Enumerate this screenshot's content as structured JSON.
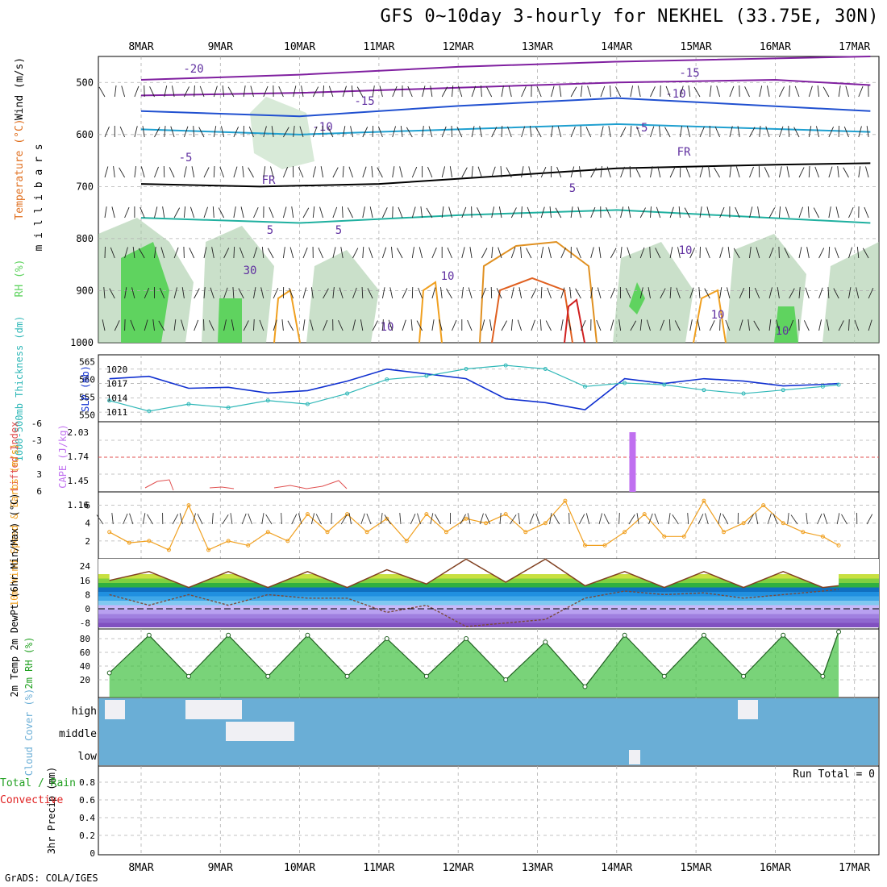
{
  "title": "GFS 0~10day 3-hourly for NEKHEL (33.75E, 30N)",
  "credit": "GrADS: COLA/IGES",
  "colors": {
    "rh_green": "#5fd35f",
    "rh_mid": "#9fc79f",
    "rh_light": "#d8ead8",
    "slp_line": "#1030d0",
    "thickness_line": "#30b8b8",
    "lifted_index": "#e05050",
    "cape_bar": "#c070f0",
    "wind_speed": "#f0a020",
    "cloud_blue": "#6aaed6",
    "grid": "#b0b0b0"
  },
  "chart_data": [
    {
      "panel": "upper-air",
      "type": "contour",
      "ylabel_wind": "Wind (m/s)",
      "ylabel_temp": "Temperature (°C)",
      "ylabel_rh": "RH (%)",
      "ylabel_units": "m i l l i b a r s",
      "y_ticks": [
        "500",
        "600",
        "700",
        "800",
        "900",
        "1000"
      ],
      "x_ticks": [
        "8MAR",
        "9MAR",
        "10MAR",
        "11MAR",
        "12MAR",
        "13MAR",
        "14MAR",
        "15MAR",
        "16MAR",
        "17MAR"
      ],
      "contour_labels": [
        "-20",
        "-15",
        "-15",
        "-10",
        "-10",
        "-5",
        "-5",
        "5",
        "5",
        "5",
        "10",
        "10",
        "10",
        "FR",
        "FR",
        "30",
        "10",
        "10"
      ],
      "freezing_level": [
        [
          0,
          695
        ],
        [
          1.5,
          700
        ],
        [
          3,
          695
        ],
        [
          4.5,
          680
        ],
        [
          6,
          665
        ],
        [
          8,
          658
        ],
        [
          9.2,
          655
        ]
      ],
      "isotherms": [
        {
          "name": "-20",
          "points": [
            [
              0,
              495
            ],
            [
              2,
              485
            ],
            [
              4,
              470
            ],
            [
              6,
              460
            ],
            [
              9.2,
              450
            ]
          ]
        },
        {
          "name": "-15",
          "points": [
            [
              0,
              525
            ],
            [
              2,
              520
            ],
            [
              4,
              510
            ],
            [
              6,
              500
            ],
            [
              8,
              495
            ],
            [
              9.2,
              505
            ]
          ]
        },
        {
          "name": "-10",
          "points": [
            [
              0,
              555
            ],
            [
              2,
              565
            ],
            [
              4,
              545
            ],
            [
              6,
              530
            ],
            [
              9.2,
              555
            ]
          ]
        },
        {
          "name": "-5",
          "points": [
            [
              0,
              590
            ],
            [
              2,
              600
            ],
            [
              4,
              590
            ],
            [
              6,
              580
            ],
            [
              9.2,
              595
            ]
          ]
        },
        {
          "name": "5",
          "points": [
            [
              0,
              760
            ],
            [
              2,
              770
            ],
            [
              4,
              755
            ],
            [
              6,
              745
            ],
            [
              9.2,
              770
            ]
          ]
        }
      ]
    },
    {
      "panel": "thickness-slp",
      "type": "line",
      "ylabel_left": "1000-500mb Thickness (dm)",
      "ylabel_right": "SLP (mb)",
      "left_ticks": [
        "565",
        "560",
        "555",
        "550"
      ],
      "right_ticks": [
        "1020",
        "1017",
        "1014",
        "1011"
      ],
      "series": [
        {
          "name": "SLP",
          "x": [
            0,
            0.5,
            1,
            1.5,
            2,
            2.5,
            3,
            3.5,
            4,
            4.5,
            5,
            5.5,
            6,
            6.5,
            7,
            7.5,
            8,
            8.5,
            9,
            9.2
          ],
          "values": [
            1018,
            1018.5,
            1016,
            1016.2,
            1015,
            1015.5,
            1017.5,
            1020,
            1019,
            1018,
            1013.8,
            1013,
            1011.5,
            1018,
            1017,
            1018,
            1017.5,
            1016.5,
            1016.8,
            1017
          ]
        },
        {
          "name": "Thickness",
          "x": [
            0,
            0.5,
            1,
            1.5,
            2,
            2.5,
            3,
            3.5,
            4,
            4.5,
            5,
            5.5,
            6,
            6.5,
            7,
            7.5,
            8,
            8.5,
            9,
            9.2
          ],
          "values": [
            554,
            551,
            553,
            552,
            554,
            553,
            556,
            560,
            561,
            563,
            564,
            563,
            558,
            559,
            558.5,
            557,
            556,
            557,
            558,
            558.5
          ]
        }
      ]
    },
    {
      "panel": "li-cape",
      "type": "line",
      "ylabel_left": "Lifted Index",
      "ylabel_right": "CAPE (J/kg)",
      "left_ticks": [
        "-6",
        "-3",
        "0",
        "3",
        "6"
      ],
      "right_ticks": [
        "2.03",
        "1.74",
        "1.45",
        "1.16"
      ],
      "cape_bar_x": 6.2,
      "cape_bar_value": 2.03
    },
    {
      "panel": "wind10m",
      "type": "line",
      "ylabel": "10m Wind Speed & Barbs (m/s)",
      "y_ticks": [
        "6",
        "4",
        "2"
      ],
      "series": [
        {
          "name": "Speed",
          "x": [
            0,
            0.25,
            0.5,
            0.75,
            1,
            1.25,
            1.5,
            1.75,
            2,
            2.25,
            2.5,
            2.75,
            3,
            3.25,
            3.5,
            3.75,
            4,
            4.25,
            4.5,
            4.75,
            5,
            5.25,
            5.5,
            5.75,
            6,
            6.25,
            6.5,
            6.75,
            7,
            7.25,
            7.5,
            7.75,
            8,
            8.25,
            8.5,
            8.75,
            9,
            9.2
          ],
          "values": [
            3,
            1.8,
            2,
            1,
            6,
            1,
            2,
            1.5,
            3,
            2,
            5,
            3,
            5,
            3,
            4.5,
            2,
            5,
            3,
            4.5,
            4,
            5,
            3,
            4,
            6.5,
            1.5,
            1.5,
            3,
            5,
            2.5,
            2.5,
            6.5,
            3,
            4,
            6,
            4,
            3,
            2.5,
            1.5
          ]
        }
      ]
    },
    {
      "panel": "temp2m",
      "type": "area",
      "ylabel": "2m Temp 2m DewPt (6hr Min/Max) (°C)",
      "y_ticks": [
        "24",
        "16",
        "8",
        "0",
        "-8"
      ],
      "series": [
        {
          "name": "Temp",
          "x": [
            0,
            0.5,
            1,
            1.5,
            2,
            2.5,
            3,
            3.5,
            4,
            4.5,
            5,
            5.5,
            6,
            6.5,
            7,
            7.5,
            8,
            8.5,
            9,
            9.2
          ],
          "values": [
            16,
            21,
            12,
            21,
            12,
            21,
            12,
            22,
            14,
            28,
            15,
            28,
            13,
            21,
            12,
            21,
            12,
            21,
            12,
            13
          ]
        },
        {
          "name": "DewPt",
          "x": [
            0,
            0.5,
            1,
            1.5,
            2,
            2.5,
            3,
            3.5,
            4,
            4.5,
            5,
            5.5,
            6,
            6.5,
            7,
            7.5,
            8,
            8.5,
            9,
            9.2
          ],
          "values": [
            8,
            2,
            8,
            2,
            8,
            6,
            6,
            -2,
            2,
            -10,
            -8,
            -6,
            6,
            10,
            8,
            9,
            6,
            8,
            10,
            11
          ]
        }
      ]
    },
    {
      "panel": "rh2m",
      "type": "area",
      "ylabel": "2m RH (%)",
      "y_ticks": [
        "80",
        "60",
        "40",
        "20"
      ],
      "series": [
        {
          "name": "RH",
          "x": [
            0,
            0.5,
            1,
            1.5,
            2,
            2.5,
            3,
            3.5,
            4,
            4.5,
            5,
            5.5,
            6,
            6.5,
            7,
            7.5,
            8,
            8.5,
            9,
            9.2
          ],
          "values": [
            30,
            85,
            25,
            85,
            25,
            85,
            25,
            80,
            25,
            80,
            20,
            75,
            10,
            85,
            25,
            85,
            25,
            85,
            25,
            90
          ]
        }
      ]
    },
    {
      "panel": "cloud",
      "type": "heatmap",
      "ylabel": "Cloud Cover (%)",
      "y_ticks": [
        "high",
        "middle",
        "low"
      ]
    },
    {
      "panel": "precip",
      "type": "bar",
      "ylabel_left": "Total / Rain",
      "ylabel_left2": "Convective",
      "ylabel": "3hr Precip (mm)",
      "y_ticks": [
        "0.8",
        "0.6",
        "0.4",
        "0.2",
        "0"
      ],
      "run_total": "Run Total = 0",
      "x_ticks": [
        "8MAR",
        "9MAR",
        "10MAR",
        "11MAR",
        "12MAR",
        "13MAR",
        "14MAR",
        "15MAR",
        "16MAR",
        "17MAR"
      ]
    }
  ]
}
